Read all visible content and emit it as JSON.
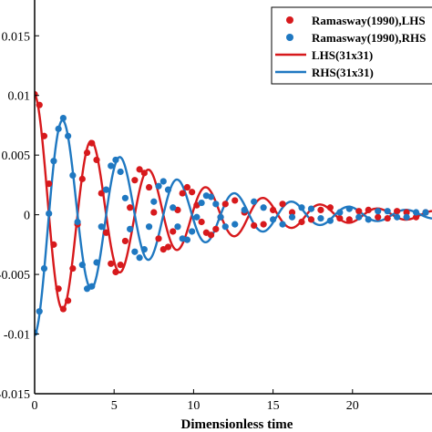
{
  "chart_data": {
    "type": "line",
    "xlabel": "Dimensionless time",
    "ylabel": "",
    "xlim": [
      0,
      25
    ],
    "ylim": [
      -0.015,
      0.018
    ],
    "x_ticks": [
      0,
      5,
      10,
      15,
      20
    ],
    "x_tick_labels": [
      "0",
      "5",
      "10",
      "15",
      "20"
    ],
    "y_ticks": [
      0.015,
      0.01,
      0.005,
      0,
      -0.005,
      -0.01,
      -0.015
    ],
    "y_tick_labels": [
      "0.015",
      "0.01",
      "0.005",
      "0",
      "-0.005",
      "-0.01",
      "-0.015"
    ],
    "grid": false,
    "legend_position": "top-right",
    "series": [
      {
        "name": "Ramasway(1990),LHS",
        "kind": "scatter",
        "color": "#d7191c",
        "x": [
          0,
          0.3,
          0.6,
          0.9,
          1.2,
          1.5,
          1.8,
          2.1,
          2.4,
          2.7,
          3.0,
          3.3,
          3.6,
          3.9,
          4.2,
          4.5,
          4.8,
          5.1,
          5.4,
          5.7,
          6.0,
          6.3,
          6.6,
          6.9,
          7.2,
          7.5,
          7.8,
          8.1,
          8.4,
          8.7,
          9.0,
          9.3,
          9.6,
          9.9,
          10.2,
          10.5,
          10.8,
          11.1,
          11.4,
          11.7,
          12.0,
          12.6,
          13.2,
          13.8,
          14.4,
          15.0,
          15.6,
          16.2,
          16.8,
          17.4,
          18.0,
          18.6,
          19.2,
          19.8,
          20.4,
          21.0,
          21.6,
          22.2,
          22.8,
          23.4,
          24.0,
          24.6
        ],
        "y": [
          0.0101,
          0.0092,
          0.0066,
          0.0026,
          -0.0025,
          -0.0062,
          -0.0079,
          -0.0072,
          -0.0045,
          -0.0008,
          0.003,
          0.0052,
          0.006,
          0.0046,
          0.0018,
          -0.0015,
          -0.0041,
          -0.0048,
          -0.0042,
          -0.0022,
          0.0006,
          0.0029,
          0.0038,
          0.0035,
          0.0023,
          0.0002,
          -0.002,
          -0.0029,
          -0.0027,
          -0.0014,
          0.0004,
          0.0018,
          0.0023,
          0.0019,
          0.0008,
          -0.0006,
          -0.0015,
          -0.0017,
          -0.0012,
          -0.0002,
          0.0009,
          0.0012,
          0.0002,
          -0.0009,
          -0.0008,
          0.0004,
          0.0009,
          0.0002,
          -0.0006,
          -0.0004,
          0.0004,
          0.0006,
          -0.0003,
          -0.0004,
          0.0003,
          0.0004,
          -0.0002,
          -0.0003,
          0.0003,
          0.0002,
          -0.0002,
          0.0002
        ]
      },
      {
        "name": "Ramasway(1990),RHS",
        "kind": "scatter",
        "color": "#1f78c1",
        "x": [
          0,
          0.3,
          0.6,
          0.9,
          1.2,
          1.5,
          1.8,
          2.1,
          2.4,
          2.7,
          3.0,
          3.3,
          3.6,
          3.9,
          4.2,
          4.5,
          4.8,
          5.1,
          5.4,
          5.7,
          6.0,
          6.3,
          6.6,
          6.9,
          7.2,
          7.5,
          7.8,
          8.1,
          8.4,
          8.7,
          9.0,
          9.3,
          9.6,
          9.9,
          10.2,
          10.5,
          10.8,
          11.1,
          11.4,
          11.7,
          12.0,
          12.6,
          13.2,
          13.8,
          14.4,
          15.0,
          15.6,
          16.2,
          16.8,
          17.4,
          18.0,
          18.6,
          19.2,
          19.8,
          20.4,
          21.0,
          21.6,
          22.2,
          22.8,
          23.4,
          24.0,
          24.6
        ],
        "y": [
          -0.0099,
          -0.0081,
          -0.0045,
          0.0001,
          0.0045,
          0.0072,
          0.0081,
          0.0066,
          0.0033,
          -0.0006,
          -0.0042,
          -0.0062,
          -0.006,
          -0.004,
          -0.001,
          0.0021,
          0.0041,
          0.0046,
          0.0036,
          0.0014,
          -0.0012,
          -0.0031,
          -0.0036,
          -0.0029,
          -0.001,
          0.0011,
          0.0024,
          0.0028,
          0.0021,
          0.0006,
          -0.001,
          -0.002,
          -0.0021,
          -0.0014,
          -0.0002,
          0.001,
          0.0016,
          0.0015,
          0.0009,
          -0.0002,
          -0.001,
          -0.0008,
          0.0004,
          0.0011,
          0.0006,
          -0.0004,
          -0.0008,
          -0.0002,
          0.0006,
          0.0005,
          -0.0003,
          -0.0005,
          0.0002,
          0.0005,
          -0.0002,
          -0.0004,
          0.0003,
          0.0003,
          -0.0002,
          -0.0002,
          0.0002,
          0.0002
        ]
      },
      {
        "name": "LHS(31x31)",
        "kind": "line",
        "color": "#d7191c",
        "amplitude": 0.0101,
        "sign": 1
      },
      {
        "name": "RHS(31x31)",
        "kind": "line",
        "color": "#1f78c1",
        "amplitude": 0.0101,
        "sign": -1
      }
    ],
    "legend": [
      {
        "label": "Ramasway(1990),LHS",
        "marker": "dot",
        "color": "#d7191c"
      },
      {
        "label": "Ramasway(1990),RHS",
        "marker": "dot",
        "color": "#1f78c1"
      },
      {
        "label": "LHS(31x31)",
        "marker": "line",
        "color": "#d7191c"
      },
      {
        "label": "RHS(31x31)",
        "marker": "line",
        "color": "#1f78c1"
      }
    ]
  }
}
